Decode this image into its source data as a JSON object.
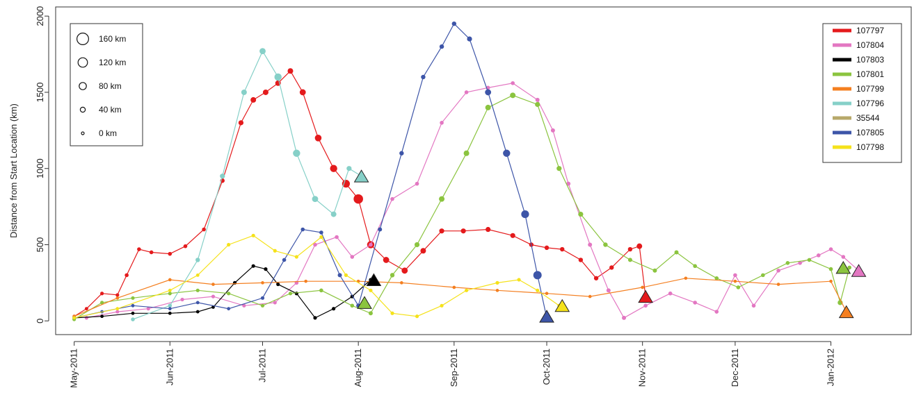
{
  "chart_data": {
    "type": "line",
    "title": "",
    "xlabel": "",
    "ylabel": "Distance from Start Location (km)",
    "ylim": [
      -90,
      2060
    ],
    "xlim": [
      "2011-04-25",
      "2012-01-27"
    ],
    "y_ticks": [
      0,
      500,
      1000,
      1500,
      2000
    ],
    "x_ticks": [
      {
        "date": "2011-05-01",
        "label": "May-2011"
      },
      {
        "date": "2011-06-01",
        "label": "Jun-2011"
      },
      {
        "date": "2011-07-01",
        "label": "Jul-2011"
      },
      {
        "date": "2011-08-01",
        "label": "Aug-2011"
      },
      {
        "date": "2011-09-01",
        "label": "Sep-2011"
      },
      {
        "date": "2011-10-01",
        "label": "Oct-2011"
      },
      {
        "date": "2011-11-01",
        "label": "Nov-2011"
      },
      {
        "date": "2011-12-01",
        "label": "Dec-2011"
      },
      {
        "date": "2012-01-01",
        "label": "Jan-2012"
      }
    ],
    "grid": false,
    "legend": {
      "position": "top-right"
    },
    "size_legend": {
      "position": "top-left",
      "entries": [
        {
          "label": "160 km",
          "value": 160
        },
        {
          "label": "120 km",
          "value": 120
        },
        {
          "label": "80 km",
          "value": 80
        },
        {
          "label": "40 km",
          "value": 40
        },
        {
          "label": "0 km",
          "value": 0
        }
      ]
    },
    "series": [
      {
        "name": "107797",
        "color": "#e41a1c",
        "x": [
          "2011-05-01",
          "2011-05-05",
          "2011-05-10",
          "2011-05-15",
          "2011-05-18",
          "2011-05-22",
          "2011-05-26",
          "2011-06-01",
          "2011-06-06",
          "2011-06-12",
          "2011-06-18",
          "2011-06-24",
          "2011-06-28",
          "2011-07-02",
          "2011-07-06",
          "2011-07-10",
          "2011-07-14",
          "2011-07-19",
          "2011-07-24",
          "2011-07-28",
          "2011-08-01",
          "2011-08-05",
          "2011-08-10",
          "2011-08-16",
          "2011-08-22",
          "2011-08-28",
          "2011-09-04",
          "2011-09-12",
          "2011-09-20",
          "2011-09-26",
          "2011-10-01",
          "2011-10-06",
          "2011-10-12",
          "2011-10-17",
          "2011-10-22",
          "2011-10-28",
          "2011-10-31",
          "2011-11-02"
        ],
        "y": [
          30,
          80,
          180,
          170,
          300,
          470,
          450,
          440,
          490,
          600,
          920,
          1300,
          1450,
          1500,
          1560,
          1640,
          1500,
          1200,
          1000,
          900,
          800,
          500,
          400,
          330,
          460,
          590,
          590,
          600,
          560,
          500,
          480,
          470,
          400,
          280,
          350,
          470,
          490,
          160
        ],
        "sizes": [
          10,
          12,
          15,
          15,
          20,
          20,
          20,
          20,
          20,
          20,
          30,
          40,
          50,
          50,
          50,
          50,
          60,
          70,
          80,
          90,
          120,
          80,
          60,
          60,
          50,
          40,
          40,
          40,
          40,
          30,
          30,
          30,
          30,
          30,
          30,
          30,
          50,
          20
        ]
      },
      {
        "name": "107804",
        "color": "#e377c2",
        "x": [
          "2011-05-05",
          "2011-05-15",
          "2011-05-25",
          "2011-06-05",
          "2011-06-15",
          "2011-06-25",
          "2011-07-05",
          "2011-07-12",
          "2011-07-18",
          "2011-07-25",
          "2011-07-30",
          "2011-08-05",
          "2011-08-12",
          "2011-08-20",
          "2011-08-28",
          "2011-09-05",
          "2011-09-12",
          "2011-09-20",
          "2011-09-28",
          "2011-10-03",
          "2011-10-08",
          "2011-10-15",
          "2011-10-21",
          "2011-10-26",
          "2011-11-02",
          "2011-11-10",
          "2011-11-18",
          "2011-11-25",
          "2011-12-01",
          "2011-12-07",
          "2011-12-15",
          "2011-12-22",
          "2011-12-28",
          "2012-01-01",
          "2012-01-05",
          "2012-01-10"
        ],
        "y": [
          20,
          60,
          80,
          140,
          160,
          100,
          120,
          250,
          500,
          550,
          420,
          500,
          800,
          900,
          1300,
          1500,
          1530,
          1560,
          1450,
          1250,
          900,
          500,
          200,
          20,
          100,
          180,
          120,
          60,
          300,
          100,
          330,
          380,
          430,
          470,
          420,
          330
        ],
        "sizes": [
          15,
          15,
          15,
          15,
          15,
          15,
          15,
          20,
          20,
          20,
          20,
          20,
          20,
          20,
          20,
          20,
          20,
          20,
          25,
          25,
          25,
          25,
          25,
          25,
          20,
          20,
          20,
          20,
          20,
          20,
          20,
          20,
          20,
          20,
          20,
          20
        ]
      },
      {
        "name": "107803",
        "color": "#000000",
        "x": [
          "2011-05-01",
          "2011-05-10",
          "2011-05-20",
          "2011-06-01",
          "2011-06-10",
          "2011-06-15",
          "2011-06-22",
          "2011-06-28",
          "2011-07-02",
          "2011-07-06",
          "2011-07-12",
          "2011-07-18",
          "2011-07-24",
          "2011-07-30",
          "2011-08-05"
        ],
        "y": [
          20,
          30,
          50,
          50,
          60,
          90,
          250,
          360,
          340,
          240,
          180,
          20,
          80,
          160,
          270
        ],
        "sizes": [
          10,
          10,
          10,
          10,
          10,
          10,
          15,
          15,
          15,
          15,
          15,
          15,
          15,
          15,
          15
        ]
      },
      {
        "name": "107801",
        "color": "#8bc43f",
        "x": [
          "2011-05-01",
          "2011-05-10",
          "2011-05-20",
          "2011-06-01",
          "2011-06-10",
          "2011-06-20",
          "2011-07-01",
          "2011-07-10",
          "2011-07-20",
          "2011-07-30",
          "2011-08-05",
          "2011-08-12",
          "2011-08-20",
          "2011-08-28",
          "2011-09-05",
          "2011-09-12",
          "2011-09-20",
          "2011-09-28",
          "2011-10-05",
          "2011-10-12",
          "2011-10-20",
          "2011-10-28",
          "2011-11-05",
          "2011-11-12",
          "2011-11-18",
          "2011-11-25",
          "2011-12-02",
          "2011-12-10",
          "2011-12-18",
          "2011-12-25",
          "2012-01-01",
          "2012-01-04",
          "2012-01-07"
        ],
        "y": [
          10,
          120,
          150,
          180,
          200,
          180,
          100,
          180,
          200,
          100,
          50,
          300,
          500,
          800,
          1100,
          1400,
          1480,
          1420,
          1000,
          700,
          500,
          400,
          330,
          450,
          360,
          280,
          220,
          300,
          380,
          400,
          340,
          120,
          350
        ],
        "sizes": [
          15,
          15,
          15,
          15,
          15,
          15,
          15,
          15,
          20,
          20,
          25,
          30,
          40,
          50,
          50,
          50,
          50,
          40,
          40,
          40,
          30,
          25,
          25,
          25,
          20,
          20,
          20,
          20,
          20,
          20,
          20,
          40,
          20
        ]
      },
      {
        "name": "107799",
        "color": "#f47f20",
        "x": [
          "2011-05-01",
          "2011-05-15",
          "2011-06-01",
          "2011-06-15",
          "2011-07-01",
          "2011-07-15",
          "2011-08-01",
          "2011-08-15",
          "2011-09-01",
          "2011-09-15",
          "2011-10-01",
          "2011-10-15",
          "2011-11-01",
          "2011-11-15",
          "2011-12-01",
          "2011-12-15",
          "2012-01-01",
          "2012-01-06"
        ],
        "y": [
          30,
          150,
          270,
          240,
          250,
          260,
          260,
          250,
          220,
          200,
          180,
          160,
          220,
          280,
          260,
          240,
          260,
          60
        ],
        "sizes": [
          8,
          8,
          8,
          8,
          8,
          8,
          8,
          8,
          8,
          8,
          8,
          8,
          8,
          8,
          8,
          8,
          8,
          8
        ]
      },
      {
        "name": "107796",
        "color": "#86d0c8",
        "x": [
          "2011-05-20",
          "2011-06-01",
          "2011-06-10",
          "2011-06-18",
          "2011-06-25",
          "2011-07-01",
          "2011-07-06",
          "2011-07-12",
          "2011-07-18",
          "2011-07-24",
          "2011-07-29",
          "2011-08-02"
        ],
        "y": [
          10,
          100,
          400,
          950,
          1500,
          1770,
          1600,
          1100,
          800,
          700,
          1000,
          950
        ],
        "sizes": [
          20,
          20,
          30,
          40,
          50,
          60,
          80,
          80,
          60,
          50,
          40,
          30
        ]
      },
      {
        "name": "35544",
        "color": "#b7a86a",
        "x": [],
        "y": [],
        "sizes": []
      },
      {
        "name": "107805",
        "color": "#3d55a8",
        "x": [
          "2011-05-01",
          "2011-05-10",
          "2011-05-20",
          "2011-06-01",
          "2011-06-10",
          "2011-06-20",
          "2011-07-01",
          "2011-07-08",
          "2011-07-14",
          "2011-07-20",
          "2011-07-26",
          "2011-08-01",
          "2011-08-08",
          "2011-08-15",
          "2011-08-22",
          "2011-08-28",
          "2011-09-01",
          "2011-09-06",
          "2011-09-12",
          "2011-09-18",
          "2011-09-24",
          "2011-09-28",
          "2011-10-01"
        ],
        "y": [
          20,
          60,
          100,
          80,
          120,
          80,
          150,
          400,
          600,
          580,
          300,
          100,
          600,
          1100,
          1600,
          1800,
          1950,
          1850,
          1500,
          1100,
          700,
          300,
          20
        ],
        "sizes": [
          10,
          10,
          10,
          10,
          10,
          10,
          15,
          20,
          20,
          20,
          25,
          25,
          25,
          30,
          30,
          30,
          30,
          40,
          60,
          80,
          90,
          100,
          60
        ]
      },
      {
        "name": "107798",
        "color": "#f5e21b",
        "x": [
          "2011-05-01",
          "2011-05-15",
          "2011-06-01",
          "2011-06-10",
          "2011-06-20",
          "2011-06-28",
          "2011-07-05",
          "2011-07-12",
          "2011-07-20",
          "2011-07-28",
          "2011-08-05",
          "2011-08-12",
          "2011-08-20",
          "2011-08-28",
          "2011-09-05",
          "2011-09-15",
          "2011-09-22",
          "2011-09-28",
          "2011-10-05"
        ],
        "y": [
          20,
          80,
          200,
          300,
          500,
          560,
          460,
          420,
          550,
          300,
          200,
          50,
          30,
          100,
          200,
          250,
          270,
          200,
          100
        ],
        "sizes": [
          10,
          10,
          10,
          10,
          15,
          15,
          15,
          15,
          15,
          15,
          15,
          15,
          15,
          15,
          15,
          15,
          15,
          15,
          15
        ]
      }
    ],
    "end_markers": [
      {
        "series": "107796",
        "x": "2011-08-02",
        "y": 950
      },
      {
        "series": "107801",
        "x": "2011-08-03",
        "y": 120
      },
      {
        "series": "107803",
        "x": "2011-08-06",
        "y": 270
      },
      {
        "series": "107805",
        "x": "2011-10-01",
        "y": 30
      },
      {
        "series": "107798",
        "x": "2011-10-06",
        "y": 100
      },
      {
        "series": "107797",
        "x": "2011-11-02",
        "y": 160
      },
      {
        "series": "107801",
        "x": "2012-01-05",
        "y": 350
      },
      {
        "series": "107804",
        "x": "2012-01-10",
        "y": 330
      },
      {
        "series": "107799",
        "x": "2012-01-06",
        "y": 60
      }
    ]
  }
}
